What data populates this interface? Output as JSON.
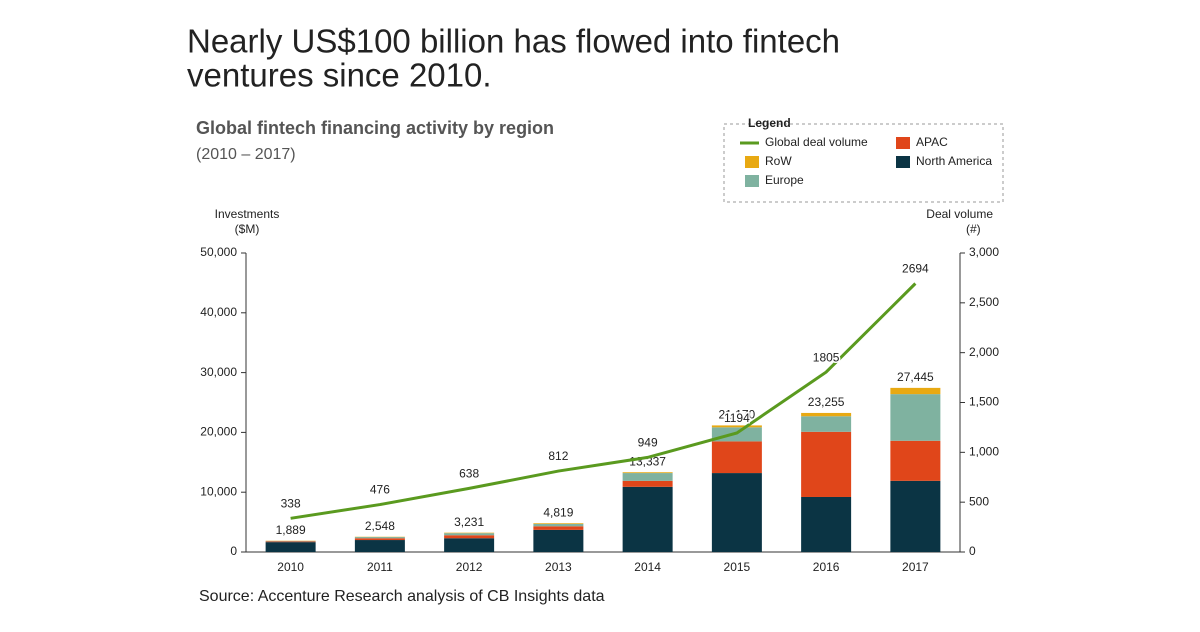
{
  "chart_data": {
    "type": "stacked-bar-line",
    "headline": [
      "Nearly US$100 billion has flowed into fintech",
      "ventures since 2010."
    ],
    "title": "Global fintech financing activity by region",
    "subtitle": "(2010 – 2017)",
    "ylabel": [
      "Investments",
      "($M)"
    ],
    "y2label": [
      "Deal volume",
      "(#)"
    ],
    "legend_title": "Legend",
    "source": "Source: Accenture Research analysis of CB Insights data",
    "categories": [
      "2010",
      "2011",
      "2012",
      "2013",
      "2014",
      "2015",
      "2016",
      "2017"
    ],
    "series": [
      {
        "name": "North America",
        "color": "#0b3444",
        "values": [
          1650,
          2000,
          2300,
          3700,
          10900,
          13200,
          9200,
          11900
        ]
      },
      {
        "name": "APAC",
        "color": "#e0461a",
        "values": [
          120,
          300,
          500,
          600,
          1000,
          5300,
          10900,
          6700
        ]
      },
      {
        "name": "Europe",
        "color": "#7fb2a0",
        "values": [
          80,
          200,
          350,
          400,
          1300,
          2350,
          2600,
          7800
        ]
      },
      {
        "name": "RoW",
        "color": "#e8a912",
        "values": [
          39,
          48,
          81,
          119,
          137,
          320,
          555,
          1045
        ]
      },
      {
        "name": "Global deal volume",
        "color": "#5a9a1f",
        "axis": "y2",
        "type": "line",
        "values": [
          338,
          476,
          638,
          812,
          949,
          1194,
          1805,
          2694
        ]
      }
    ],
    "totals": [
      1889,
      2548,
      3231,
      4819,
      13337,
      21170,
      23255,
      27445
    ],
    "total_labels": [
      "1,889",
      "2,548",
      "3,231",
      "4,819",
      "13,337",
      "21,170",
      "23,255",
      "27,445"
    ],
    "ylim": [
      0,
      50000
    ],
    "yticks": [
      0,
      {
        "value": 10000,
        "label": "10,000"
      },
      {
        "value": 20000,
        "label": "20,000"
      },
      {
        "value": 30000,
        "label": "30,000"
      },
      {
        "value": 40000,
        "label": "40,000"
      },
      {
        "value": 50000,
        "label": "50,000"
      }
    ],
    "y2lim": [
      0,
      3000
    ],
    "y2ticks": [
      0,
      500,
      {
        "value": 1000,
        "label": "1,000"
      },
      {
        "value": 1500,
        "label": "1,500"
      },
      {
        "value": 2000,
        "label": "2,000"
      },
      {
        "value": 2500,
        "label": "2,500"
      },
      {
        "value": 3000,
        "label": "3,000"
      }
    ]
  }
}
